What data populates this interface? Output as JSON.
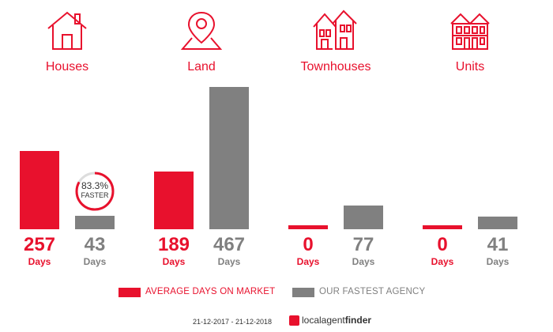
{
  "categories": [
    {
      "label": "Houses",
      "icon": "house-icon"
    },
    {
      "label": "Land",
      "icon": "map-pin-icon"
    },
    {
      "label": "Townhouses",
      "icon": "townhouse-icon"
    },
    {
      "label": "Units",
      "icon": "apartment-icon"
    }
  ],
  "chart_data": {
    "type": "bar",
    "categories": [
      "Houses",
      "Land",
      "Townhouses",
      "Units"
    ],
    "series": [
      {
        "name": "AVERAGE DAYS ON MARKET",
        "color": "#e8112d",
        "values": [
          257,
          189,
          0,
          0
        ]
      },
      {
        "name": "OUR FASTEST AGENCY",
        "color": "#808080",
        "values": [
          43,
          467,
          77,
          41
        ]
      }
    ],
    "value_labels": {
      "red": [
        "257",
        "189",
        "0",
        "0"
      ],
      "grey": [
        "43",
        "467",
        "77",
        "41"
      ]
    },
    "unit": "Days",
    "ylim": [
      0,
      467
    ]
  },
  "badge": {
    "percent": "83.3%",
    "text": "FASTER",
    "fraction": 0.833
  },
  "legend": {
    "red": "AVERAGE DAYS ON MARKET",
    "grey": "OUR FASTEST AGENCY"
  },
  "footer": {
    "date_range": "21-12-2017 - 21-12-2018",
    "brand_strong": "localagent",
    "brand_light": "finder"
  },
  "colors": {
    "red": "#e8112d",
    "grey": "#808080"
  }
}
